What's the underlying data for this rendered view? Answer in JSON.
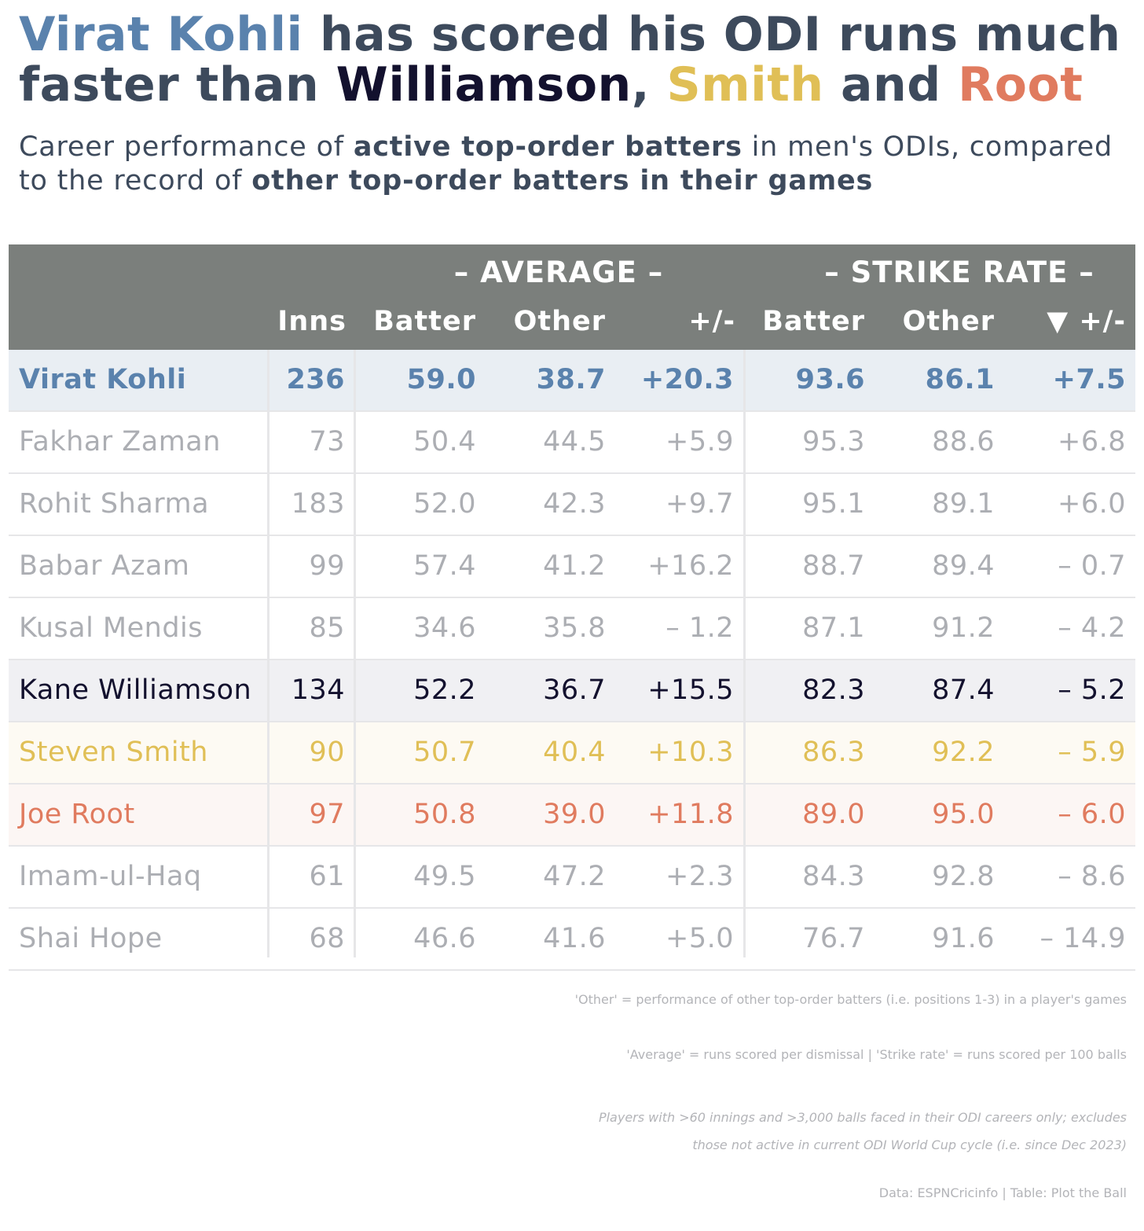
{
  "title": {
    "part1": "Virat Kohli",
    "part2": " has scored his ODI runs much faster than ",
    "part3": "Williamson",
    "part4": ", ",
    "part5": "Smith",
    "part6": " and ",
    "part7": "Root"
  },
  "subtitle": {
    "part1": "Career performance of ",
    "part2": "active top-order batters",
    "part3": " in men's ODIs, compared to the record of ",
    "part4": "other top-order batters in their games"
  },
  "headers": {
    "group_average": "– AVERAGE –",
    "group_strike_rate": "– STRIKE RATE –",
    "inns": "Inns",
    "avg_batter": "Batter",
    "avg_other": "Other",
    "avg_diff": "+/-",
    "sr_batter": "Batter",
    "sr_other": "Other",
    "sr_diff": "▼ +/-"
  },
  "colors": {
    "header_bg": "#7b7f7c",
    "kohli": "#5a82ad",
    "williamson": "#13112e",
    "smith": "#e0bf56",
    "root": "#e07b5f",
    "muted": "#acaeb3"
  },
  "chart_data": {
    "type": "table",
    "columns": [
      "",
      "Inns",
      "Batter",
      "Other",
      "+/-",
      "Batter",
      "Other",
      "▼ +/-"
    ],
    "rows": [
      {
        "name": "Virat Kohli",
        "inns": "236",
        "avg_batter": "59.0",
        "avg_other": "38.7",
        "avg_diff": "+20.3",
        "sr_batter": "93.6",
        "sr_other": "86.1",
        "sr_diff": "+7.5",
        "color": "#5a82ad",
        "bg": "#e9eef3",
        "bold": true
      },
      {
        "name": "Fakhar Zaman",
        "inns": "73",
        "avg_batter": "50.4",
        "avg_other": "44.5",
        "avg_diff": "+5.9",
        "sr_batter": "95.3",
        "sr_other": "88.6",
        "sr_diff": "+6.8",
        "color": "#acaeb3",
        "bg": "#ffffff",
        "bold": false
      },
      {
        "name": "Rohit Sharma",
        "inns": "183",
        "avg_batter": "52.0",
        "avg_other": "42.3",
        "avg_diff": "+9.7",
        "sr_batter": "95.1",
        "sr_other": "89.1",
        "sr_diff": "+6.0",
        "color": "#acaeb3",
        "bg": "#ffffff",
        "bold": false
      },
      {
        "name": "Babar Azam",
        "inns": "99",
        "avg_batter": "57.4",
        "avg_other": "41.2",
        "avg_diff": "+16.2",
        "sr_batter": "88.7",
        "sr_other": "89.4",
        "sr_diff": "– 0.7",
        "color": "#acaeb3",
        "bg": "#ffffff",
        "bold": false
      },
      {
        "name": "Kusal Mendis",
        "inns": "85",
        "avg_batter": "34.6",
        "avg_other": "35.8",
        "avg_diff": "– 1.2",
        "sr_batter": "87.1",
        "sr_other": "91.2",
        "sr_diff": "– 4.2",
        "color": "#acaeb3",
        "bg": "#ffffff",
        "bold": false
      },
      {
        "name": "Kane Williamson",
        "inns": "134",
        "avg_batter": "52.2",
        "avg_other": "36.7",
        "avg_diff": "+15.5",
        "sr_batter": "82.3",
        "sr_other": "87.4",
        "sr_diff": "– 5.2",
        "color": "#13112e",
        "bg": "#f0f0f3",
        "bold": false
      },
      {
        "name": "Steven Smith",
        "inns": "90",
        "avg_batter": "50.7",
        "avg_other": "40.4",
        "avg_diff": "+10.3",
        "sr_batter": "86.3",
        "sr_other": "92.2",
        "sr_diff": "– 5.9",
        "color": "#e0bf56",
        "bg": "#fdfaf3",
        "bold": false
      },
      {
        "name": "Joe Root",
        "inns": "97",
        "avg_batter": "50.8",
        "avg_other": "39.0",
        "avg_diff": "+11.8",
        "sr_batter": "89.0",
        "sr_other": "95.0",
        "sr_diff": "– 6.0",
        "color": "#e07b5f",
        "bg": "#fcf6f4",
        "bold": false
      },
      {
        "name": "Imam-ul-Haq",
        "inns": "61",
        "avg_batter": "49.5",
        "avg_other": "47.2",
        "avg_diff": "+2.3",
        "sr_batter": "84.3",
        "sr_other": "92.8",
        "sr_diff": "– 8.6",
        "color": "#acaeb3",
        "bg": "#ffffff",
        "bold": false
      },
      {
        "name": "Shai Hope",
        "inns": "68",
        "avg_batter": "46.6",
        "avg_other": "41.6",
        "avg_diff": "+5.0",
        "sr_batter": "76.7",
        "sr_other": "91.6",
        "sr_diff": "– 14.9",
        "color": "#acaeb3",
        "bg": "#ffffff",
        "bold": false
      }
    ]
  },
  "notes": {
    "other_def": "'Other' = performance of other top-order batters (i.e. positions 1-3) in a player's games",
    "avg_sr_def": "'Average' = runs scored per dismissal | 'Strike rate' = runs scored per 100 balls",
    "criteria_line1": "Players with >60 innings and >3,000 balls faced in their ODI careers only; excludes",
    "criteria_line2": "those not active in current ODI World Cup cycle (i.e. since Dec 2023)",
    "source": "Data: ESPNCricinfo | Table: Plot the Ball"
  }
}
